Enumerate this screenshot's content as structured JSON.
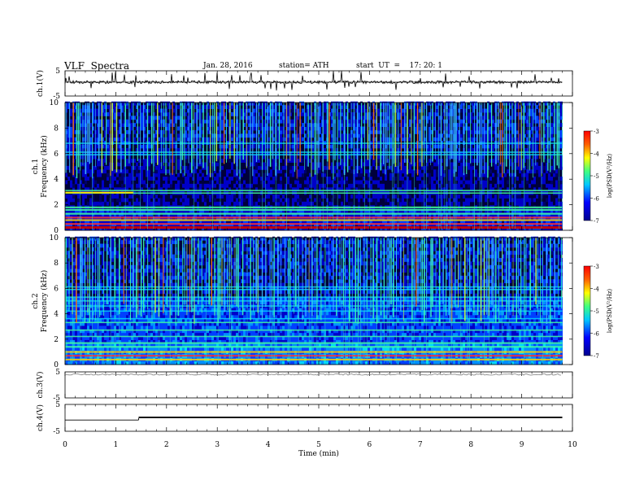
{
  "header": {
    "title": "VLF  Spectra",
    "date": "Jan. 28, 2016",
    "station": "station= ATH",
    "start_ut": "start  UT  =    17: 20: 1"
  },
  "chart_data": [
    {
      "type": "line",
      "panel": "ch1-waveform",
      "ylabel": "ch.1(V)",
      "yticks": [
        "5",
        "-5"
      ],
      "ylim": [
        -5,
        5
      ],
      "xlim": [
        0,
        10
      ],
      "trace": "noisy waveform near +0.5 V with sporadic spikes up to +5 V",
      "baseline": 0.5,
      "data_end_min": 9.8,
      "color": "#000000"
    },
    {
      "type": "heatmap",
      "panel": "ch1-spectrogram",
      "ylabel": [
        "ch.1",
        "Frequency  (kHz)"
      ],
      "ylim": [
        0,
        10
      ],
      "yticks": [
        "0",
        "2",
        "4",
        "6",
        "8",
        "10"
      ],
      "xlim": [
        0,
        10
      ],
      "data_end_min": 9.8,
      "colorbar": {
        "label": "log(PSD(V²/Hz)",
        "range": [
          -7,
          -3
        ],
        "ticks": [
          "-3",
          "-4",
          "-5",
          "-6",
          "-7"
        ]
      },
      "bands_khz": [
        0.2,
        0.5,
        0.8,
        1.0,
        1.3,
        1.6,
        1.8,
        2.9,
        3.1,
        5.9,
        6.1,
        6.8
      ],
      "spherics": "dense broadband impulses extending from ~6 kHz up to 10 kHz"
    },
    {
      "type": "heatmap",
      "panel": "ch2-spectrogram",
      "ylabel": [
        "ch.2",
        "Frequency  (kHz)"
      ],
      "ylim": [
        0,
        10
      ],
      "yticks": [
        "0",
        "2",
        "4",
        "6",
        "8",
        "10"
      ],
      "xlim": [
        0,
        10
      ],
      "data_end_min": 9.8,
      "colorbar": {
        "label": "log(PSD(V²/Hz)",
        "range": [
          -7,
          -3
        ],
        "ticks": [
          "-3",
          "-4",
          "-5",
          "-6",
          "-7"
        ]
      },
      "bands_khz": [
        0.4,
        0.7,
        1.0,
        1.4,
        1.7,
        2.2,
        2.7,
        3.3,
        3.6,
        4.2,
        4.6,
        5.0,
        5.3,
        5.9,
        6.1
      ],
      "spherics": "dense broadband impulses extending from ~5 kHz up to 10 kHz"
    },
    {
      "type": "line",
      "panel": "ch3-waveform",
      "ylabel": "ch.3(V)",
      "yticks": [
        "5",
        "-5"
      ],
      "ylim": [
        -5,
        5
      ],
      "xlim": [
        0,
        10
      ],
      "trace": "nearly flat near +4 V",
      "baseline": 4.0,
      "data_end_min": 9.8,
      "color": "#7f7f7f"
    },
    {
      "type": "line",
      "panel": "ch4-waveform",
      "ylabel": "ch.4(V)",
      "yticks": [
        "5",
        "-5"
      ],
      "ylim": [
        -5,
        5
      ],
      "xlim": [
        0,
        10
      ],
      "trace": "flat at -0.8 V until 1.45 min, then a dense band about 0 V to 0.4 V",
      "segments": [
        {
          "from": 0.0,
          "to": 1.45,
          "level": -0.8
        },
        {
          "from": 1.45,
          "to": 9.8,
          "band": [
            -0.1,
            0.45
          ]
        }
      ],
      "color": "#000000"
    }
  ],
  "x_axis": {
    "xlabel": "Time  (min)",
    "ticks": [
      "0",
      "1",
      "2",
      "3",
      "4",
      "5",
      "6",
      "7",
      "8",
      "9",
      "10"
    ],
    "range": [
      0,
      10
    ]
  }
}
